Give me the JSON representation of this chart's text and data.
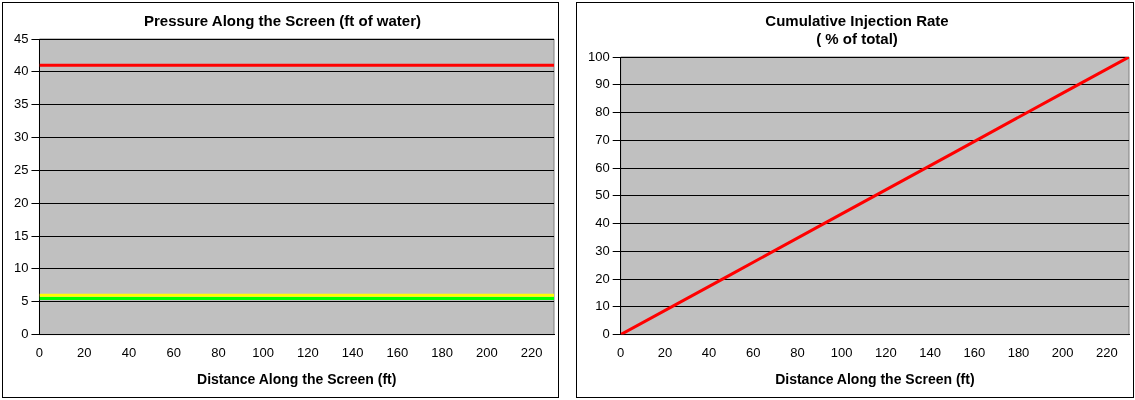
{
  "chart_data": [
    {
      "type": "line",
      "title": "Pressure Along the Screen (ft of water)",
      "xlabel": "Distance Along the Screen (ft)",
      "xlim": [
        0,
        230
      ],
      "xticks": [
        0,
        20,
        40,
        60,
        80,
        100,
        120,
        140,
        160,
        180,
        200,
        220
      ],
      "ylim": [
        0,
        45
      ],
      "yticks": [
        0,
        5,
        10,
        15,
        20,
        25,
        30,
        35,
        40,
        45
      ],
      "grid": "y",
      "legend": false,
      "marker": "none",
      "line_style": "solid",
      "series": [
        {
          "color": "#ff0000",
          "x": [
            0,
            230
          ],
          "values": [
            41,
            41
          ]
        },
        {
          "color": "#ffff00",
          "x": [
            0,
            230
          ],
          "values": [
            6,
            6
          ]
        },
        {
          "color": "#00ff00",
          "x": [
            0,
            230
          ],
          "values": [
            5.5,
            5.5
          ]
        }
      ]
    },
    {
      "type": "line",
      "title": "Cumulative Injection Rate\n( % of total)",
      "xlabel": "Distance Along the Screen (ft)",
      "xlim": [
        0,
        230
      ],
      "xticks": [
        0,
        20,
        40,
        60,
        80,
        100,
        120,
        140,
        160,
        180,
        200,
        220
      ],
      "ylim": [
        0,
        100
      ],
      "yticks": [
        0,
        10,
        20,
        30,
        40,
        50,
        60,
        70,
        80,
        90,
        100
      ],
      "grid": "y",
      "legend": false,
      "marker": "none",
      "line_style": "solid",
      "series": [
        {
          "color": "#ff0000",
          "x": [
            0,
            50,
            100,
            150,
            200,
            230
          ],
          "values": [
            0,
            21.7,
            43.5,
            65.2,
            87,
            100
          ]
        }
      ]
    }
  ]
}
